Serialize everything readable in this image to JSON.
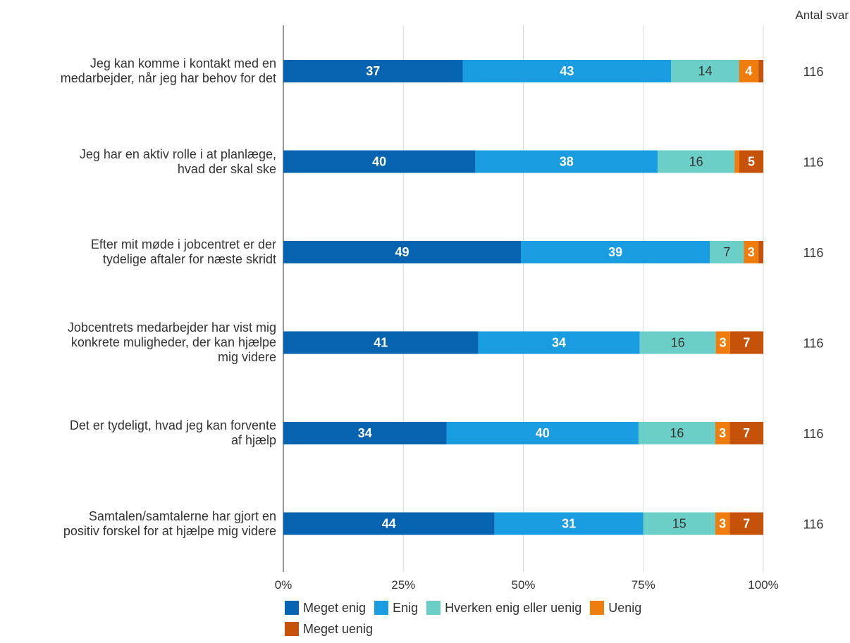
{
  "chart_data": {
    "type": "bar",
    "orientation": "horizontal",
    "stacked": true,
    "percent_stacked": true,
    "categories": [
      "Jeg kan komme i kontakt med en medarbejder, når jeg har behov for det",
      "Jeg har en aktiv rolle i at planlæge, hvad der skal ske",
      "Efter mit møde i jobcentret er der tydelige aftaler for næste skridt",
      "Jobcentrets medarbejder har vist mig konkrete muligheder, der kan hjælpe mig videre",
      "Det er tydeligt, hvad jeg kan forvente af hjælp",
      "Samtalen/samtalerne har gjort en positiv forskel for at hjælpe mig videre"
    ],
    "category_lines": [
      [
        "Jeg kan komme i kontakt med en",
        "medarbejder, når jeg har behov for det"
      ],
      [
        "Jeg har en aktiv rolle i at planlæge,",
        "hvad der skal ske"
      ],
      [
        "Efter mit møde i jobcentret er der",
        "tydelige aftaler for næste skridt"
      ],
      [
        "Jobcentrets medarbejder har vist mig",
        "konkrete muligheder, der kan hjælpe",
        "mig videre"
      ],
      [
        "Det er tydeligt, hvad jeg kan forvente",
        "af hjælp"
      ],
      [
        "Samtalen/samtalerne har gjort en",
        "positiv forskel for at hjælpe mig videre"
      ]
    ],
    "series": [
      {
        "name": "Meget enig",
        "color": "#0563b0",
        "values": [
          37,
          40,
          49,
          41,
          34,
          44
        ],
        "labels": [
          "37",
          "40",
          "49",
          "41",
          "34",
          "44"
        ]
      },
      {
        "name": "Enig",
        "color": "#1a9ce0",
        "values": [
          43,
          38,
          39,
          34,
          40,
          31
        ],
        "labels": [
          "43",
          "38",
          "39",
          "34",
          "40",
          "31"
        ]
      },
      {
        "name": "Hverken enig eller uenig",
        "color": "#6bcfc7",
        "values": [
          14,
          16,
          7,
          16,
          16,
          15
        ],
        "labels": [
          "14",
          "16",
          "7",
          "16",
          "16",
          "15"
        ]
      },
      {
        "name": "Uenig",
        "color": "#ee7d0e",
        "values": [
          4,
          1,
          3,
          3,
          3,
          3
        ],
        "labels": [
          "4",
          "",
          "3",
          "3",
          "3",
          "3"
        ]
      },
      {
        "name": "Meget uenig",
        "color": "#c55208",
        "values": [
          1,
          5,
          1,
          7,
          7,
          7
        ],
        "labels": [
          "",
          "5",
          "",
          "7",
          "7",
          "7"
        ]
      }
    ],
    "xlim": [
      0,
      100
    ],
    "xticks": [
      "0%",
      "25%",
      "50%",
      "75%",
      "100%"
    ],
    "gridlines": true,
    "legend_position": "bottom",
    "count_header": "Antal svar",
    "counts": [
      "116",
      "116",
      "116",
      "116",
      "116",
      "116"
    ]
  }
}
